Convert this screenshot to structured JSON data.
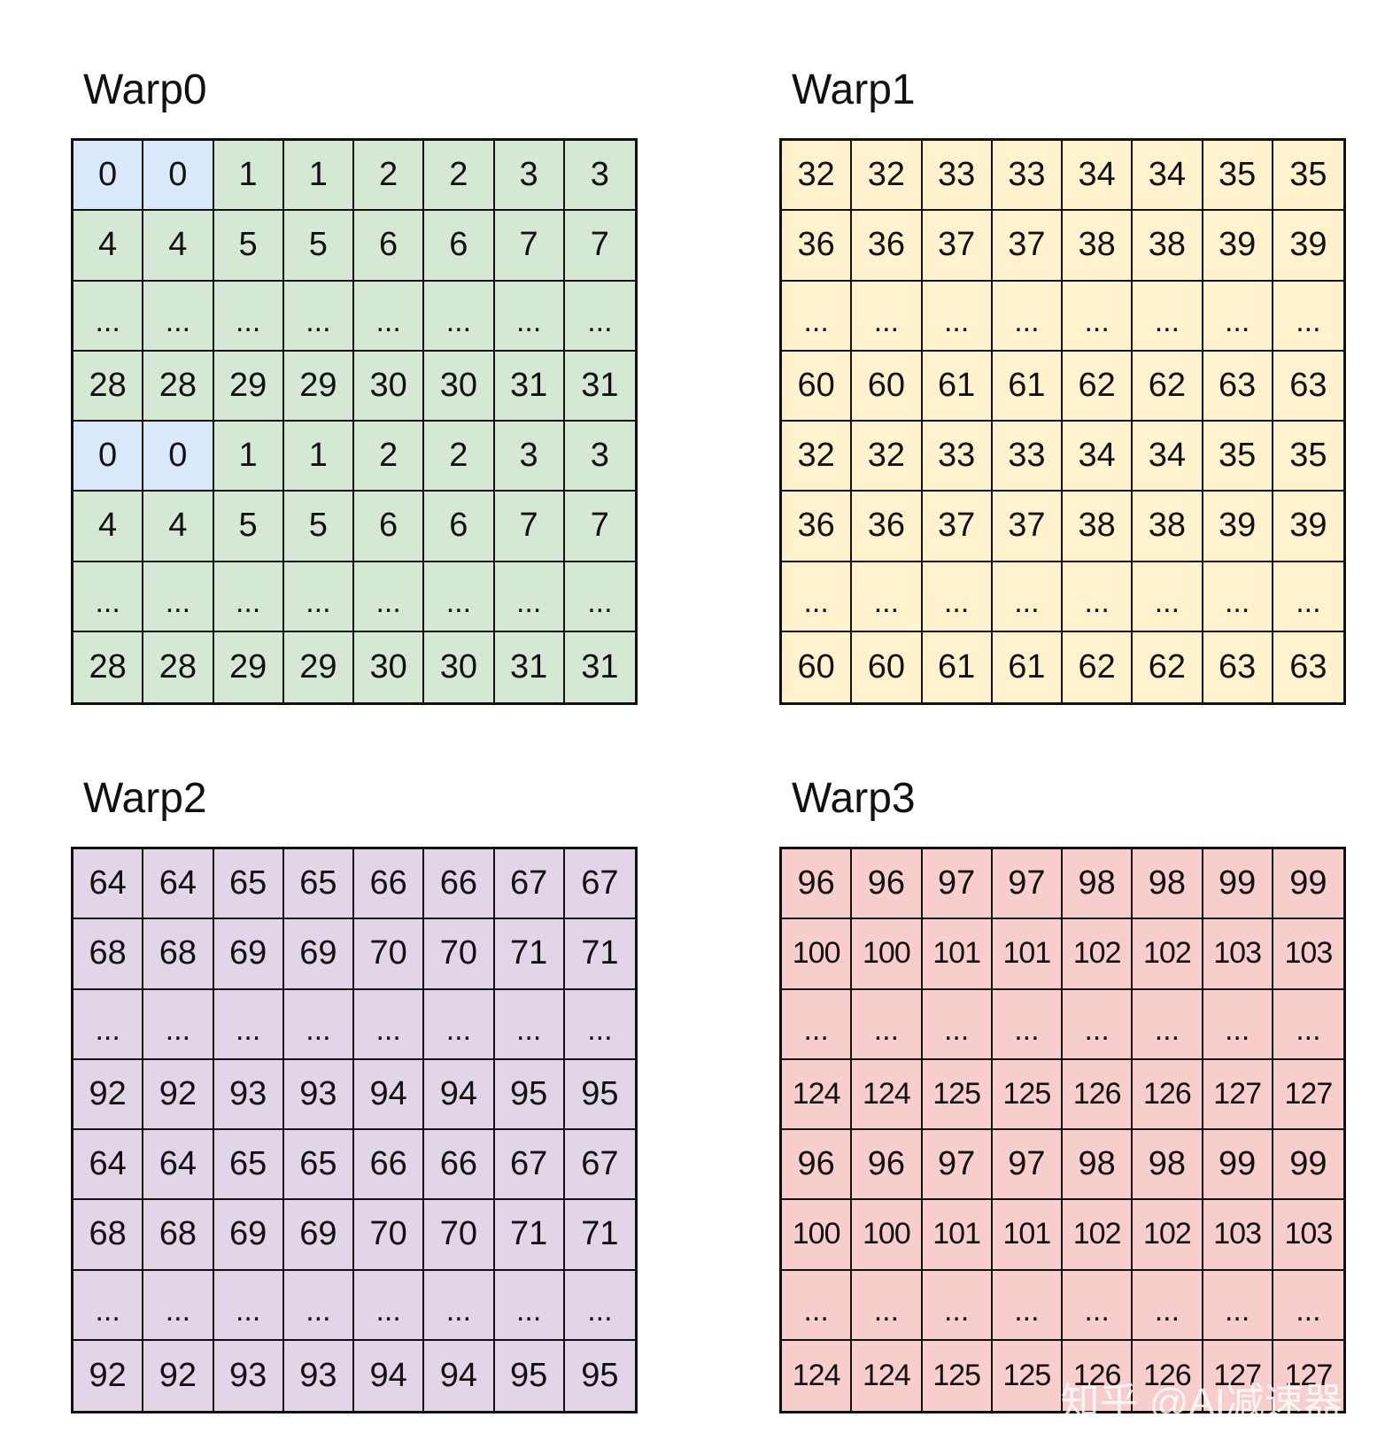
{
  "colors": {
    "warp0": "#d5e8d4",
    "warp0_highlight": "#dae8fc",
    "warp1": "#fff2cc",
    "warp2": "#e1d5e7",
    "warp3": "#f8cecc",
    "border": "#111111"
  },
  "panels": [
    {
      "title": "Warp0",
      "color_key": "warp0",
      "highlight_color_key": "warp0_highlight",
      "highlight_cells": [
        [
          0,
          0
        ],
        [
          0,
          1
        ],
        [
          4,
          0
        ],
        [
          4,
          1
        ]
      ],
      "rows": [
        [
          "0",
          "0",
          "1",
          "1",
          "2",
          "2",
          "3",
          "3"
        ],
        [
          "4",
          "4",
          "5",
          "5",
          "6",
          "6",
          "7",
          "7"
        ],
        [
          "...",
          "...",
          "...",
          "...",
          "...",
          "...",
          "...",
          "..."
        ],
        [
          "28",
          "28",
          "29",
          "29",
          "30",
          "30",
          "31",
          "31"
        ],
        [
          "0",
          "0",
          "1",
          "1",
          "2",
          "2",
          "3",
          "3"
        ],
        [
          "4",
          "4",
          "5",
          "5",
          "6",
          "6",
          "7",
          "7"
        ],
        [
          "...",
          "...",
          "...",
          "...",
          "...",
          "...",
          "...",
          "..."
        ],
        [
          "28",
          "28",
          "29",
          "29",
          "30",
          "30",
          "31",
          "31"
        ]
      ]
    },
    {
      "title": "Warp1",
      "color_key": "warp1",
      "highlight_cells": [],
      "rows": [
        [
          "32",
          "32",
          "33",
          "33",
          "34",
          "34",
          "35",
          "35"
        ],
        [
          "36",
          "36",
          "37",
          "37",
          "38",
          "38",
          "39",
          "39"
        ],
        [
          "...",
          "...",
          "...",
          "...",
          "...",
          "...",
          "...",
          "..."
        ],
        [
          "60",
          "60",
          "61",
          "61",
          "62",
          "62",
          "63",
          "63"
        ],
        [
          "32",
          "32",
          "33",
          "33",
          "34",
          "34",
          "35",
          "35"
        ],
        [
          "36",
          "36",
          "37",
          "37",
          "38",
          "38",
          "39",
          "39"
        ],
        [
          "...",
          "...",
          "...",
          "...",
          "...",
          "...",
          "...",
          "..."
        ],
        [
          "60",
          "60",
          "61",
          "61",
          "62",
          "62",
          "63",
          "63"
        ]
      ]
    },
    {
      "title": "Warp2",
      "color_key": "warp2",
      "highlight_cells": [],
      "rows": [
        [
          "64",
          "64",
          "65",
          "65",
          "66",
          "66",
          "67",
          "67"
        ],
        [
          "68",
          "68",
          "69",
          "69",
          "70",
          "70",
          "71",
          "71"
        ],
        [
          "...",
          "...",
          "...",
          "...",
          "...",
          "...",
          "...",
          "..."
        ],
        [
          "92",
          "92",
          "93",
          "93",
          "94",
          "94",
          "95",
          "95"
        ],
        [
          "64",
          "64",
          "65",
          "65",
          "66",
          "66",
          "67",
          "67"
        ],
        [
          "68",
          "68",
          "69",
          "69",
          "70",
          "70",
          "71",
          "71"
        ],
        [
          "...",
          "...",
          "...",
          "...",
          "...",
          "...",
          "...",
          "..."
        ],
        [
          "92",
          "92",
          "93",
          "93",
          "94",
          "94",
          "95",
          "95"
        ]
      ]
    },
    {
      "title": "Warp3",
      "color_key": "warp3",
      "highlight_cells": [],
      "rows": [
        [
          "96",
          "96",
          "97",
          "97",
          "98",
          "98",
          "99",
          "99"
        ],
        [
          "100",
          "100",
          "101",
          "101",
          "102",
          "102",
          "103",
          "103"
        ],
        [
          "...",
          "...",
          "...",
          "...",
          "...",
          "...",
          "...",
          "..."
        ],
        [
          "124",
          "124",
          "125",
          "125",
          "126",
          "126",
          "127",
          "127"
        ],
        [
          "96",
          "96",
          "97",
          "97",
          "98",
          "98",
          "99",
          "99"
        ],
        [
          "100",
          "100",
          "101",
          "101",
          "102",
          "102",
          "103",
          "103"
        ],
        [
          "...",
          "...",
          "...",
          "...",
          "...",
          "...",
          "...",
          "..."
        ],
        [
          "124",
          "124",
          "125",
          "125",
          "126",
          "126",
          "127",
          "127"
        ]
      ]
    }
  ],
  "watermark": "知乎 @AI减速器"
}
